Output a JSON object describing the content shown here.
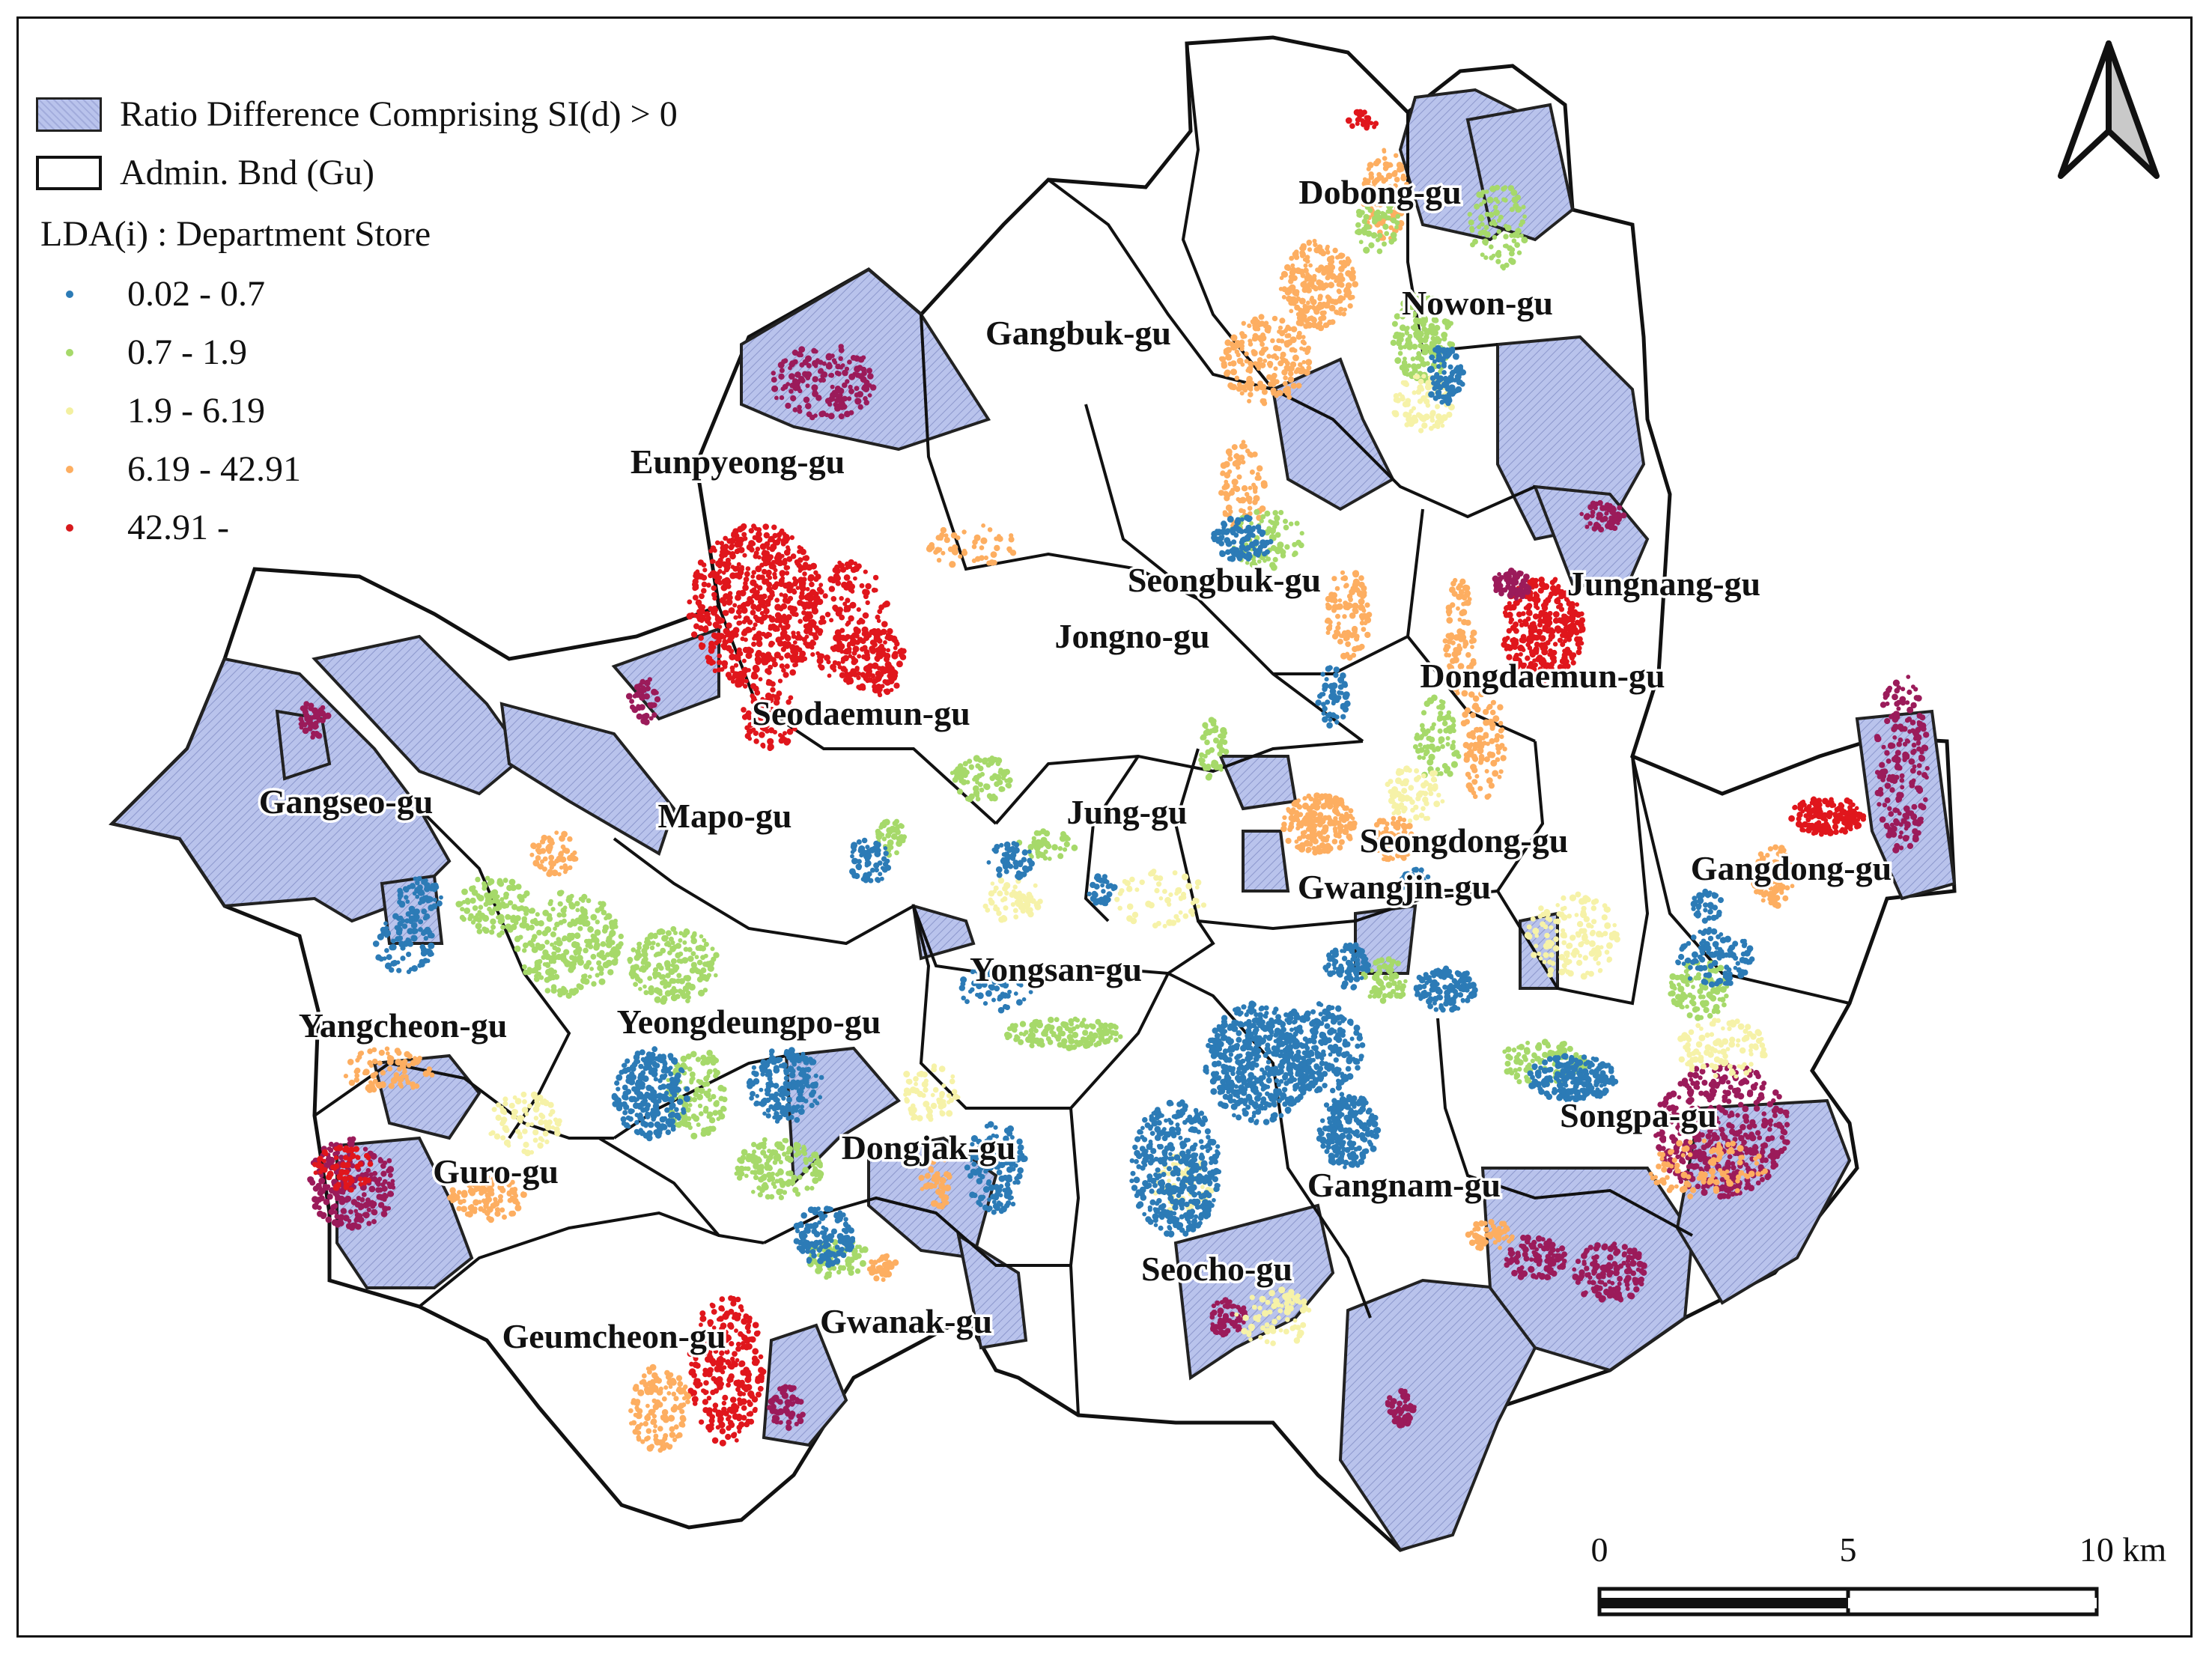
{
  "legend": {
    "fill_label": "Ratio Difference Comprising SI(d) > 0",
    "boundary_label": "Admin. Bnd (Gu)",
    "lda_title": "LDA(i) : Department Store",
    "classes": [
      {
        "label": "0.02 - 0.7",
        "color": "#2c7bb6"
      },
      {
        "label": "0.7 - 1.9",
        "color": "#a6d96a"
      },
      {
        "label": "1.9 - 6.19",
        "color": "#ffffbf"
      },
      {
        "label": "6.19 - 42.91",
        "color": "#fdae61"
      },
      {
        "label": "42.91 -",
        "color": "#d7191c"
      }
    ]
  },
  "districts": [
    "Dobong-gu",
    "Nowon-gu",
    "Gangbuk-gu",
    "Eunpyeong-gu",
    "Seongbuk-gu",
    "Jungnang-gu",
    "Jongno-gu",
    "Dongdaemun-gu",
    "Seodaemun-gu",
    "Gangseo-gu",
    "Mapo-gu",
    "Jung-gu",
    "Seongdong-gu",
    "Gwangjin-gu",
    "Gangdong-gu",
    "Yongsan-gu",
    "Yangcheon-gu",
    "Yeongdeungpo-gu",
    "Songpa-gu",
    "Dongjak-gu",
    "Guro-gu",
    "Gangnam-gu",
    "Seocho-gu",
    "Geumcheon-gu",
    "Gwanak-gu"
  ],
  "scale_bar": {
    "labels": [
      "0",
      "5",
      "10 km"
    ]
  },
  "colors": {
    "fill": "#b9c3ec",
    "hotspot": "#9b1b5a",
    "boundary": "#111111"
  }
}
